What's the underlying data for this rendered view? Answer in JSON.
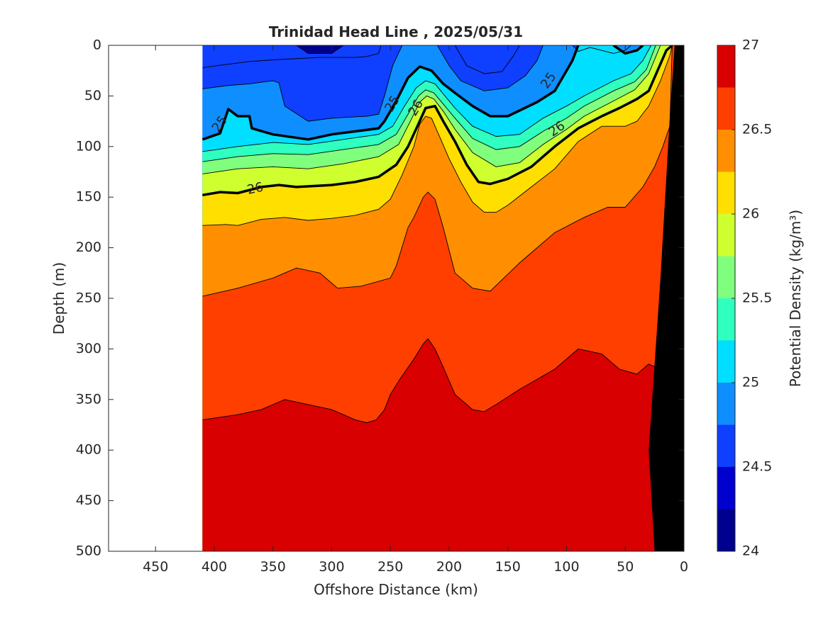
{
  "chart_data": {
    "type": "contour",
    "title": "Trinidad Head Line , 2025/05/31",
    "xlabel": "Offshore Distance (km)",
    "ylabel": "Depth (m)",
    "xlim": [
      490,
      0
    ],
    "ylim": [
      0,
      500
    ],
    "x_reversed": true,
    "y_reversed": true,
    "xticks": [
      450,
      400,
      350,
      300,
      250,
      200,
      150,
      100,
      50,
      0
    ],
    "yticks": [
      0,
      50,
      100,
      150,
      200,
      250,
      300,
      350,
      400,
      450,
      500
    ],
    "grid": false,
    "colorbar": {
      "label": "Potential Density (kg/m³)",
      "min": 24,
      "max": 27,
      "ticks": [
        24,
        24.5,
        25,
        25.5,
        26,
        26.5,
        27
      ],
      "levels": [
        24,
        24.25,
        24.5,
        24.75,
        25,
        25.25,
        25.5,
        25.75,
        26,
        26.25,
        26.5,
        26.75,
        27
      ],
      "colors": [
        "#00008f",
        "#0000cf",
        "#0f3fff",
        "#0f8fff",
        "#00dfff",
        "#2fffbf",
        "#80ff7f",
        "#cfff2f",
        "#ffdf00",
        "#ff8f00",
        "#ff3f00",
        "#d80000"
      ]
    },
    "data_extent_km": [
      0,
      410
    ],
    "bottom_color": "#000000",
    "isopycnals": [
      {
        "level": 24.25,
        "x": [
          330,
          320,
          300,
          290
        ],
        "y": [
          0,
          8,
          8,
          0
        ]
      },
      {
        "level": 24.5,
        "x": [
          410,
          390,
          370,
          345,
          310,
          280,
          270,
          260,
          258
        ],
        "y": [
          22,
          19,
          16,
          14,
          12,
          12,
          11,
          8,
          0
        ]
      },
      {
        "level": 24.5,
        "x": [
          195,
          185,
          170,
          155,
          145,
          140
        ],
        "y": [
          0,
          20,
          28,
          26,
          10,
          0
        ]
      },
      {
        "level": 24.75,
        "x": [
          410,
          390,
          370,
          350,
          345,
          340,
          320,
          300,
          270,
          260,
          255,
          248,
          240
        ],
        "y": [
          43,
          40,
          38,
          35,
          37,
          60,
          75,
          72,
          70,
          68,
          50,
          20,
          0
        ]
      },
      {
        "level": 24.75,
        "x": [
          210,
          200,
          190,
          170,
          150,
          135,
          125,
          120
        ],
        "y": [
          0,
          20,
          35,
          45,
          42,
          30,
          15,
          0
        ]
      },
      {
        "level": 24.75,
        "x": [
          95,
          90,
          80,
          60,
          50,
          45
        ],
        "y": [
          0,
          6,
          2,
          8,
          5,
          0
        ]
      },
      {
        "level": 25,
        "x": [
          410,
          395,
          388,
          380,
          370,
          368,
          350,
          320,
          300,
          280,
          260,
          255,
          245,
          235,
          225,
          215,
          205,
          195,
          180,
          165,
          150,
          125,
          110,
          100,
          95,
          90
        ],
        "y": [
          93,
          87,
          63,
          70,
          70,
          82,
          88,
          93,
          88,
          85,
          82,
          75,
          55,
          32,
          21,
          25,
          38,
          47,
          60,
          70,
          70,
          56,
          45,
          25,
          15,
          0
        ]
      },
      {
        "level": 25,
        "x": [
          60,
          50,
          40,
          35
        ],
        "y": [
          0,
          8,
          5,
          0
        ]
      },
      {
        "level": 25.25,
        "x": [
          410,
          380,
          350,
          320,
          290,
          260,
          248,
          238,
          228,
          220,
          212,
          205,
          195,
          180,
          160,
          140,
          120,
          100,
          85,
          60,
          45,
          35,
          28
        ],
        "y": [
          105,
          100,
          96,
          98,
          93,
          88,
          80,
          60,
          42,
          35,
          38,
          48,
          62,
          80,
          90,
          88,
          72,
          60,
          50,
          35,
          28,
          15,
          0
        ]
      },
      {
        "level": 25.5,
        "x": [
          410,
          380,
          350,
          320,
          290,
          260,
          245,
          235,
          226,
          220,
          213,
          205,
          195,
          180,
          160,
          140,
          120,
          100,
          85,
          60,
          42,
          32,
          24
        ],
        "y": [
          115,
          110,
          107,
          108,
          103,
          98,
          88,
          68,
          50,
          44,
          47,
          58,
          72,
          92,
          103,
          100,
          85,
          72,
          60,
          45,
          36,
          24,
          0
        ]
      },
      {
        "level": 25.75,
        "x": [
          410,
          380,
          350,
          320,
          290,
          260,
          243,
          233,
          225,
          219,
          213,
          205,
          195,
          180,
          160,
          140,
          120,
          100,
          85,
          60,
          42,
          30,
          20
        ],
        "y": [
          127,
          122,
          120,
          122,
          117,
          110,
          98,
          75,
          56,
          50,
          53,
          65,
          83,
          106,
          120,
          116,
          98,
          83,
          70,
          55,
          44,
          28,
          0
        ]
      },
      {
        "level": 26,
        "x": [
          410,
          395,
          380,
          360,
          345,
          330,
          300,
          280,
          260,
          245,
          235,
          227,
          220,
          212,
          205,
          195,
          185,
          175,
          165,
          150,
          130,
          110,
          90,
          70,
          55,
          40,
          30,
          15,
          10
        ],
        "y": [
          148,
          145,
          146,
          140,
          138,
          140,
          138,
          135,
          130,
          118,
          100,
          80,
          62,
          60,
          75,
          95,
          118,
          135,
          137,
          132,
          120,
          100,
          82,
          70,
          62,
          53,
          45,
          5,
          0
        ]
      },
      {
        "level": 26.25,
        "x": [
          410,
          390,
          380,
          360,
          340,
          320,
          300,
          280,
          260,
          250,
          240,
          230,
          225,
          220,
          215,
          210,
          200,
          190,
          180,
          170,
          160,
          150,
          130,
          110,
          90,
          70,
          50,
          40,
          30,
          20,
          12,
          10
        ],
        "y": [
          178,
          177,
          178,
          172,
          170,
          173,
          171,
          168,
          162,
          152,
          128,
          100,
          78,
          70,
          72,
          85,
          112,
          135,
          155,
          165,
          165,
          158,
          140,
          122,
          95,
          80,
          80,
          75,
          60,
          35,
          10,
          0
        ]
      },
      {
        "level": 26.5,
        "x": [
          410,
          380,
          350,
          330,
          310,
          295,
          275,
          250,
          245,
          235,
          230,
          222,
          218,
          212,
          205,
          195,
          180,
          165,
          140,
          110,
          85,
          65,
          50,
          35,
          25,
          18,
          12,
          10
        ],
        "y": [
          248,
          240,
          230,
          220,
          225,
          240,
          238,
          230,
          218,
          180,
          170,
          150,
          145,
          152,
          180,
          225,
          240,
          243,
          215,
          185,
          170,
          160,
          160,
          140,
          120,
          100,
          80,
          0
        ]
      },
      {
        "level": 26.75,
        "x": [
          410,
          380,
          360,
          340,
          320,
          300,
          280,
          270,
          262,
          255,
          250,
          242,
          236,
          230,
          222,
          218,
          212,
          205,
          195,
          180,
          170,
          160,
          140,
          110,
          90,
          70,
          55,
          40,
          30,
          20,
          12,
          10
        ],
        "y": [
          370,
          365,
          360,
          350,
          355,
          360,
          370,
          373,
          370,
          360,
          345,
          330,
          320,
          310,
          295,
          290,
          300,
          318,
          345,
          360,
          362,
          355,
          340,
          320,
          300,
          305,
          320,
          325,
          315,
          320,
          100,
          80
        ]
      }
    ],
    "bold_contours": [
      {
        "level": 25,
        "x": [
          410,
          395,
          388,
          380,
          370,
          368,
          350,
          320,
          300,
          280,
          260,
          255,
          245,
          235,
          225,
          215,
          205,
          195,
          180,
          165,
          150,
          125,
          110,
          100,
          95,
          90
        ],
        "y": [
          93,
          87,
          63,
          70,
          70,
          82,
          88,
          93,
          88,
          85,
          82,
          75,
          55,
          32,
          21,
          25,
          38,
          47,
          60,
          70,
          70,
          56,
          45,
          25,
          15,
          0
        ]
      },
      {
        "level": 25,
        "x": [
          60,
          50,
          40,
          35
        ],
        "y": [
          0,
          8,
          5,
          0
        ]
      },
      {
        "level": 26,
        "x": [
          410,
          395,
          380,
          360,
          345,
          330,
          300,
          280,
          260,
          245,
          235,
          227,
          220,
          212,
          205,
          195,
          185,
          175,
          165,
          150,
          130,
          110,
          90,
          70,
          55,
          40,
          30,
          15,
          10
        ],
        "y": [
          148,
          145,
          146,
          140,
          138,
          140,
          138,
          135,
          130,
          118,
          100,
          80,
          62,
          60,
          75,
          95,
          118,
          135,
          137,
          132,
          120,
          100,
          82,
          70,
          62,
          53,
          45,
          5,
          0
        ]
      }
    ],
    "contour_labels": [
      {
        "text": "25",
        "x": 395,
        "y": 78,
        "angle": -55
      },
      {
        "text": "25",
        "x": 248,
        "y": 58,
        "angle": -60
      },
      {
        "text": "25",
        "x": 115,
        "y": 35,
        "angle": -55
      },
      {
        "text": "26",
        "x": 365,
        "y": 142,
        "angle": -12
      },
      {
        "text": "26",
        "x": 228,
        "y": 62,
        "angle": -60
      },
      {
        "text": "26",
        "x": 108,
        "y": 83,
        "angle": -35
      }
    ]
  }
}
